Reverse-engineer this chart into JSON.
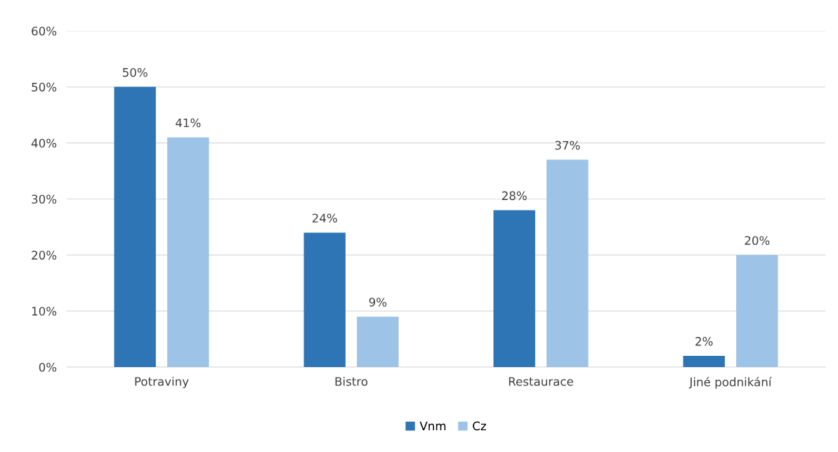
{
  "chart_data": {
    "type": "bar",
    "categories": [
      "Potraviny",
      "Bistro",
      "Restaurace",
      "Jiné podnikání"
    ],
    "series": [
      {
        "name": "Vnm",
        "color": "#2e75b6",
        "values": [
          50,
          24,
          28,
          2
        ],
        "value_labels": [
          "50%",
          "24%",
          "28%",
          "2%"
        ]
      },
      {
        "name": "Cz",
        "color": "#9dc3e6",
        "values": [
          41,
          9,
          37,
          20
        ],
        "value_labels": [
          "41%",
          "9%",
          "37%",
          "20%"
        ]
      }
    ],
    "ylim": [
      0,
      60
    ],
    "yticks": [
      {
        "value": 0,
        "label": "0%"
      },
      {
        "value": 10,
        "label": "10%"
      },
      {
        "value": 20,
        "label": "20%"
      },
      {
        "value": 30,
        "label": "30%"
      },
      {
        "value": 40,
        "label": "40%"
      },
      {
        "value": 50,
        "label": "50%"
      },
      {
        "value": 60,
        "label": "60%"
      }
    ],
    "grid": "y",
    "legend": "bottom"
  }
}
